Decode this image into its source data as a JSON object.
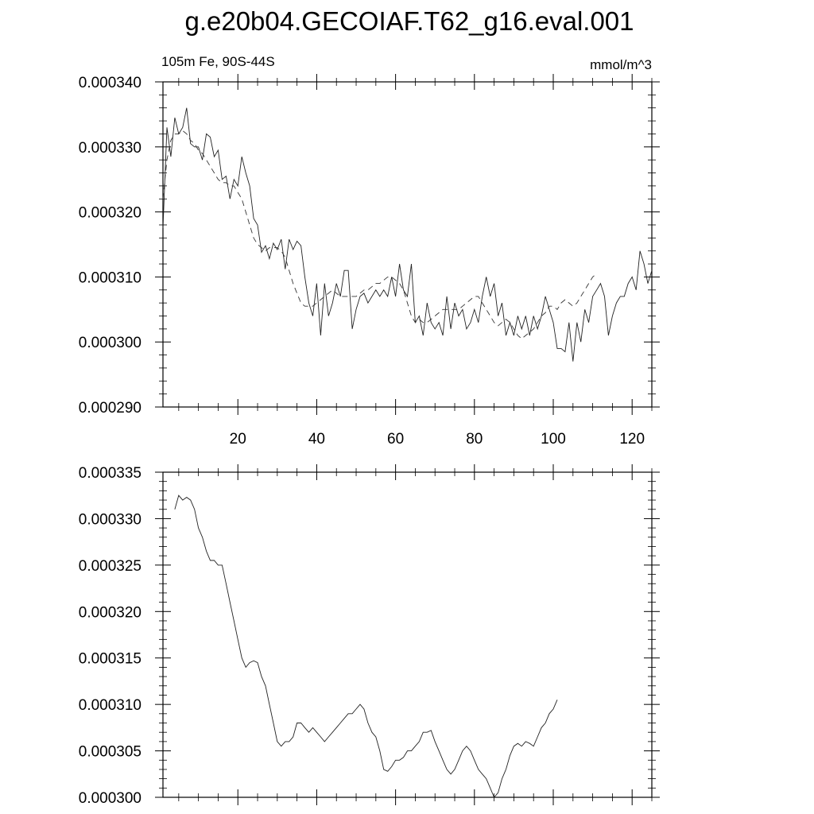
{
  "title": "g.e20b04.GECOIAF.T62_g16.eval.001",
  "chart_data": [
    {
      "type": "line",
      "left_label": "105m Fe, 90S-44S",
      "right_label": "mmol/m^3",
      "xlim": [
        1,
        125
      ],
      "x_ticks": [
        20,
        40,
        60,
        80,
        100,
        120
      ],
      "ylim": [
        0.00029,
        0.00034
      ],
      "y_ticks": [
        "0.000290",
        "0.000300",
        "0.000310",
        "0.000320",
        "0.000330",
        "0.000340"
      ],
      "x_start": 1,
      "series": [
        {
          "style": "solid",
          "values": [
            0.0003175,
            0.000333,
            0.0003285,
            0.0003345,
            0.000332,
            0.000333,
            0.000336,
            0.0003305,
            0.00033,
            0.00033,
            0.000328,
            0.000332,
            0.0003315,
            0.0003285,
            0.0003295,
            0.000325,
            0.0003255,
            0.000322,
            0.000325,
            0.000324,
            0.0003285,
            0.000326,
            0.000324,
            0.000319,
            0.000318,
            0.0003138,
            0.0003148,
            0.0003128,
            0.0003152,
            0.0003142,
            0.0003158,
            0.0003112,
            0.0003158,
            0.0003142,
            0.0003155,
            0.0003148,
            0.00031,
            0.000306,
            0.000304,
            0.000309,
            0.000301,
            0.000309,
            0.000304,
            0.000306,
            0.000309,
            0.000307,
            0.000311,
            0.000311,
            0.000302,
            0.000305,
            0.000307,
            0.0003075,
            0.000306,
            0.000307,
            0.000308,
            0.000307,
            0.000308,
            0.000307,
            0.00031,
            0.000307,
            0.000312,
            0.000308,
            0.000307,
            0.000312,
            0.000303,
            0.000304,
            0.000301,
            0.000306,
            0.000303,
            0.000302,
            0.000303,
            0.000301,
            0.000307,
            0.000302,
            0.000306,
            0.000304,
            0.000305,
            0.000302,
            0.000303,
            0.000305,
            0.000303,
            0.000307,
            0.00031,
            0.000307,
            0.000309,
            0.000304,
            0.000306,
            0.000301,
            0.000303,
            0.000301,
            0.000304,
            0.000302,
            0.000304,
            0.000301,
            0.000304,
            0.000302,
            0.000304,
            0.000307,
            0.000305,
            0.000303,
            0.000299,
            0.000299,
            0.0002985,
            0.000303,
            0.000297,
            0.000303,
            0.0003,
            0.000305,
            0.000303,
            0.000307,
            0.000308,
            0.000309,
            0.000307,
            0.000301,
            0.000304,
            0.000306,
            0.000307,
            0.000307,
            0.000309,
            0.00031,
            0.000308,
            0.000314,
            0.000312,
            0.000309,
            0.000311
          ]
        },
        {
          "style": "dashed",
          "values": [
            0.000322,
            0.000328,
            0.000331,
            0.000332,
            0.000332,
            0.0003325,
            0.000332,
            0.000331,
            0.0003305,
            0.0003295,
            0.000329,
            0.000328,
            0.000327,
            0.000326,
            0.000325,
            0.0003245,
            0.0003245,
            0.000324,
            0.000324,
            0.000323,
            0.000322,
            0.00032,
            0.000318,
            0.000316,
            0.000315,
            0.0003145,
            0.000314,
            0.0003145,
            0.0003145,
            0.0003145,
            0.000314,
            0.000313,
            0.000311,
            0.000309,
            0.0003075,
            0.000306,
            0.0003055,
            0.0003055,
            0.0003055,
            0.000306,
            0.0003065,
            0.000307,
            0.0003075,
            0.000308,
            0.0003075,
            0.000307,
            0.000307,
            0.000307,
            0.000307,
            0.000307,
            0.0003075,
            0.000308,
            0.000308,
            0.0003085,
            0.000309,
            0.000309,
            0.0003095,
            0.00031,
            0.00031,
            0.0003095,
            0.000309,
            0.000308,
            0.000306,
            0.000304,
            0.000303,
            0.0003035,
            0.000303,
            0.000303,
            0.0003035,
            0.000304,
            0.0003045,
            0.000305,
            0.000305,
            0.000305,
            0.000305,
            0.000305,
            0.0003055,
            0.000306,
            0.0003065,
            0.000307,
            0.000307,
            0.000306,
            0.000305,
            0.000304,
            0.000303,
            0.0003025,
            0.000303,
            0.0003035,
            0.000303,
            0.000302,
            0.000301,
            0.0003005,
            0.000301,
            0.0003015,
            0.000302,
            0.000303,
            0.000304,
            0.0003045,
            0.0003055,
            0.0003055,
            0.000305,
            0.000306,
            0.0003065,
            0.000306,
            0.0003055,
            0.000306,
            0.000307,
            0.000308,
            0.000309,
            0.00031,
            0.0003105
          ]
        }
      ]
    },
    {
      "type": "line",
      "xlim": [
        1,
        125
      ],
      "x_ticks": [
        20,
        40,
        60,
        80,
        100,
        120
      ],
      "ylim": [
        0.0003,
        0.000335
      ],
      "y_ticks": [
        "0.000300",
        "0.000305",
        "0.000310",
        "0.000315",
        "0.000320",
        "0.000325",
        "0.000330",
        "0.000335"
      ],
      "x_start": 4,
      "series": [
        {
          "style": "solid",
          "values": [
            0.000331,
            0.0003325,
            0.000332,
            0.0003323,
            0.000332,
            0.000331,
            0.000329,
            0.000328,
            0.0003265,
            0.0003255,
            0.0003255,
            0.000325,
            0.000325,
            0.000323,
            0.000321,
            0.000319,
            0.000317,
            0.000315,
            0.000314,
            0.0003145,
            0.0003147,
            0.0003145,
            0.000313,
            0.000312,
            0.00031,
            0.000308,
            0.000306,
            0.0003055,
            0.000306,
            0.000306,
            0.0003065,
            0.000308,
            0.000308,
            0.0003075,
            0.000307,
            0.0003075,
            0.000307,
            0.0003065,
            0.000306,
            0.0003065,
            0.000307,
            0.0003075,
            0.000308,
            0.0003085,
            0.000309,
            0.000309,
            0.0003095,
            0.00031,
            0.0003095,
            0.000308,
            0.000307,
            0.0003065,
            0.000305,
            0.000303,
            0.0003028,
            0.0003033,
            0.000304,
            0.000304,
            0.0003043,
            0.000305,
            0.000305,
            0.0003055,
            0.000306,
            0.000307,
            0.000307,
            0.0003072,
            0.000306,
            0.000305,
            0.000304,
            0.000303,
            0.0003025,
            0.000303,
            0.000304,
            0.000305,
            0.0003055,
            0.000305,
            0.000304,
            0.000303,
            0.0003025,
            0.000302,
            0.000301,
            0.0003,
            0.0003005,
            0.000302,
            0.000303,
            0.0003045,
            0.0003055,
            0.0003058,
            0.0003055,
            0.000306,
            0.0003058,
            0.0003055,
            0.0003065,
            0.0003075,
            0.000308,
            0.000309,
            0.0003095,
            0.0003105
          ]
        }
      ]
    }
  ]
}
